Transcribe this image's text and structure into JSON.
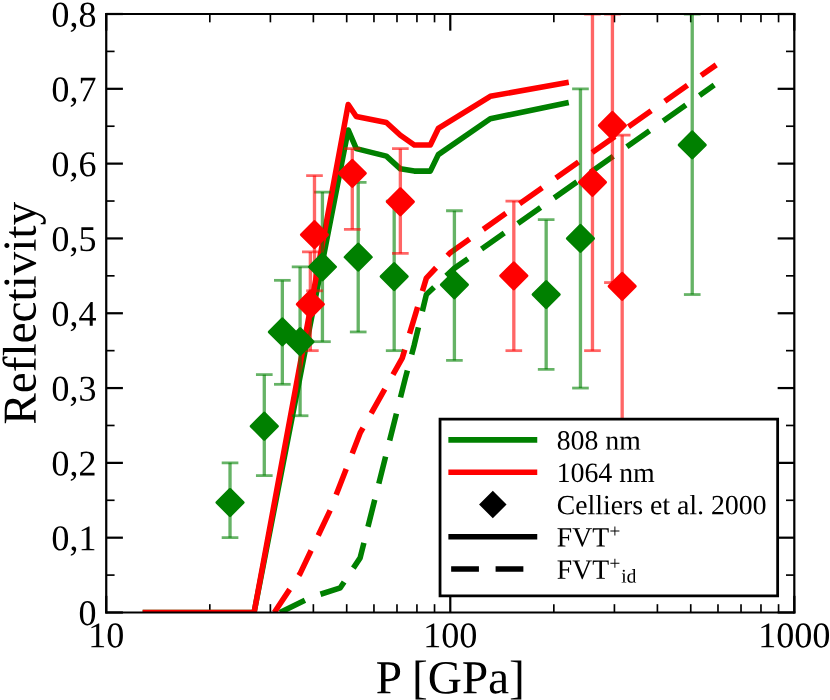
{
  "chart_data": {
    "type": "line",
    "xlabel": "P [GPa]",
    "ylabel": "Reflectivity",
    "log": "x",
    "xlim": [
      10,
      1000
    ],
    "xticks": [
      10,
      100,
      1000
    ],
    "ylim": [
      0,
      0.8
    ],
    "yticks": [
      0,
      {
        "value": 0.1,
        "label": "0,1"
      },
      {
        "value": 0.2,
        "label": "0,2"
      },
      {
        "value": 0.3,
        "label": "0,3"
      },
      {
        "value": 0.4,
        "label": "0,4"
      },
      {
        "value": 0.5,
        "label": "0,5"
      },
      {
        "value": 0.6,
        "label": "0,6"
      },
      {
        "value": 0.7,
        "label": "0,7"
      },
      {
        "value": 0.8,
        "label": "0,8"
      }
    ],
    "grid": false,
    "legend": "bottom right",
    "annotations": [
      "Celliers et al. 2000",
      "FVT$^{+}$",
      "FVT$^{+}$$_{id}$"
    ],
    "series": [
      {
        "name": "808 nm",
        "color": "#008000",
        "line_style": "solid",
        "x": [
          13,
          26.9,
          50.5,
          53.3,
          65.2,
          71.6,
          78.6,
          87.5,
          92.3,
          130.7,
          217
        ],
        "values": [
          0,
          0,
          0.645,
          0.62,
          0.61,
          0.593,
          0.59,
          0.59,
          0.612,
          0.66,
          0.681
        ]
      },
      {
        "name": "1064 nm",
        "color": "#ff0000",
        "line_style": "solid",
        "x": [
          13,
          26.9,
          50.5,
          53.3,
          65.2,
          71.6,
          78.6,
          87.5,
          92.3,
          130.7,
          217
        ],
        "values": [
          0,
          0,
          0.679,
          0.663,
          0.655,
          0.638,
          0.625,
          0.625,
          0.647,
          0.69,
          0.708
        ]
      },
      {
        "color": "#008000",
        "line_style": "dashed",
        "x": [
          32,
          39.2,
          47.9,
          54.7,
          74,
          78.6,
          85.2,
          102.7,
          585
        ],
        "values": [
          0,
          0.02,
          0.033,
          0.073,
          0.313,
          0.358,
          0.425,
          0.46,
          0.705
        ]
      },
      {
        "color": "#ff0000",
        "line_style": "dashed",
        "x": [
          30.8,
          36.6,
          44.8,
          54.7,
          72.5,
          85.2,
          100,
          593
        ],
        "values": [
          0,
          0.052,
          0.137,
          0.24,
          0.34,
          0.447,
          0.481,
          0.732
        ]
      },
      {
        "type": "scatter",
        "color": "#008000",
        "marker": "diamond",
        "x": [
          22.9,
          28.8,
          32.5,
          36.6,
          42.5,
          54,
          68.7,
          102.8,
          190,
          239,
          505
        ],
        "values": [
          0.147,
          0.249,
          0.375,
          0.362,
          0.462,
          0.475,
          0.449,
          0.438,
          0.425,
          0.5,
          0.625
        ],
        "errors": [
          [
            0.1,
            0.2
          ],
          [
            0.183,
            0.318
          ],
          [
            0.305,
            0.444
          ],
          [
            0.263,
            0.462
          ],
          [
            0.362,
            0.562
          ],
          [
            0.375,
            0.575
          ],
          [
            0.35,
            0.55
          ],
          [
            0.337,
            0.537
          ],
          [
            0.325,
            0.525
          ],
          [
            0.3,
            0.7
          ],
          [
            0.425,
            0.8
          ]
        ]
      },
      {
        "type": "scatter",
        "color": "#ff0000",
        "marker": "diamond",
        "x": [
          39.2,
          40.3,
          51.9,
          71.6,
          153,
          259,
          296,
          316
        ],
        "values": [
          0.412,
          0.505,
          0.587,
          0.549,
          0.45,
          0.575,
          0.651,
          0.436
        ],
        "errors": [
          [
            0.35,
            0.482
          ],
          [
            0.43,
            0.584
          ],
          [
            0.512,
            0.62
          ],
          [
            0.48,
            0.62
          ],
          [
            0.35,
            0.55
          ],
          [
            0.35,
            0.8
          ],
          [
            0.441,
            0.8
          ],
          [
            0.237,
            0.638
          ]
        ]
      }
    ]
  }
}
